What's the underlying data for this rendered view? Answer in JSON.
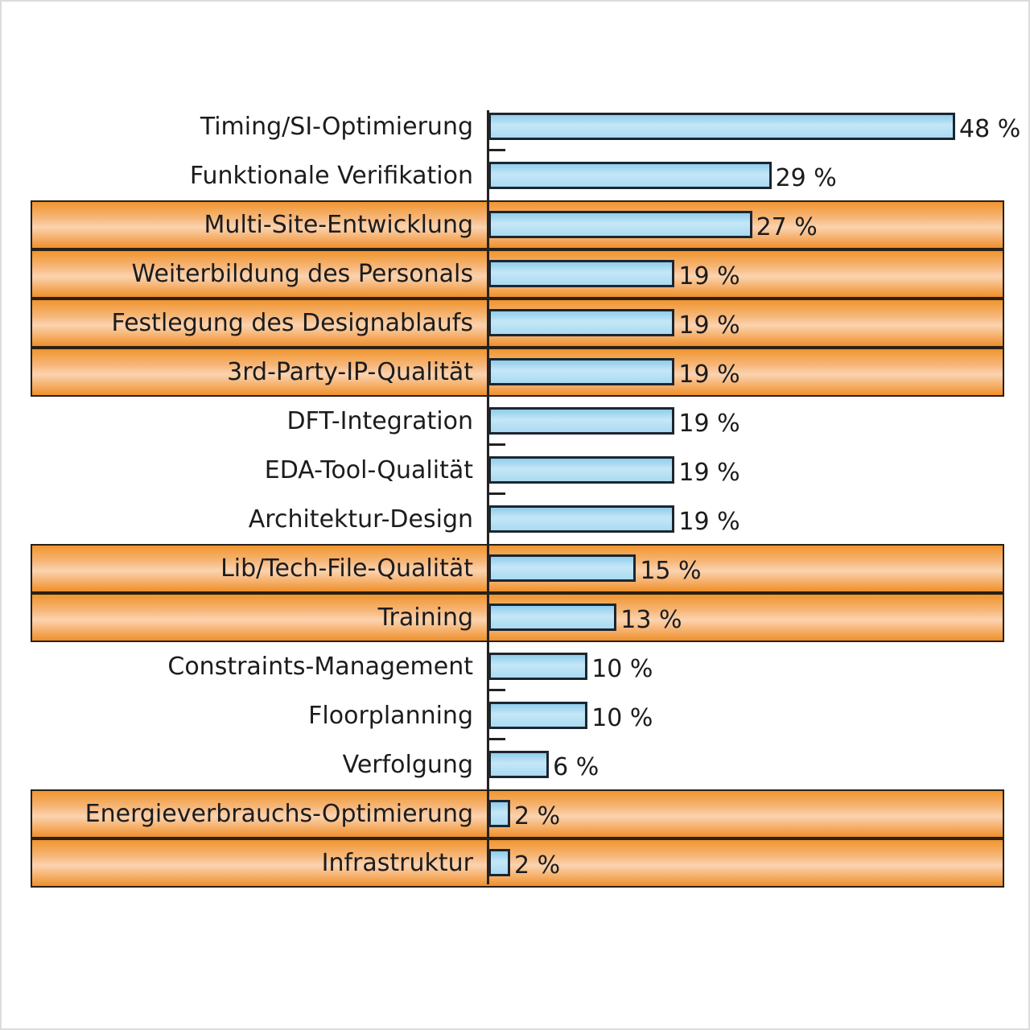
{
  "chart_data": {
    "type": "bar",
    "orientation": "horizontal",
    "title": "",
    "xlabel": "",
    "ylabel": "",
    "xlim": [
      0,
      50
    ],
    "unit": "%",
    "categories": [
      "Timing/SI-Optimierung",
      "Funktionale Verifikation",
      "Multi-Site-Entwicklung",
      "Weiterbildung des Personals",
      "Festlegung des Designablaufs",
      "3rd-Party-IP-Qualität",
      "DFT-Integration",
      "EDA-Tool-Qualität",
      "Architektur-Design",
      "Lib/Tech-File-Qualität",
      "Training",
      "Constraints-Management",
      "Floorplanning",
      "Verfolgung",
      "Energieverbrauchs-Optimierung",
      "Infrastruktur"
    ],
    "values": [
      48,
      29,
      27,
      19,
      19,
      19,
      19,
      19,
      19,
      15,
      13,
      10,
      10,
      6,
      2,
      2
    ],
    "value_labels": [
      "48 %",
      "29 %",
      "27 %",
      "19 %",
      "19 %",
      "19 %",
      "19 %",
      "19 %",
      "19 %",
      "15 %",
      "13 %",
      "10 %",
      "10 %",
      "6 %",
      "2 %",
      "2 %"
    ],
    "highlighted": [
      false,
      false,
      true,
      true,
      true,
      true,
      false,
      false,
      false,
      true,
      true,
      false,
      false,
      false,
      true,
      true
    ],
    "colors": {
      "bar": "#b3e0f5",
      "highlight": "#f39a3c",
      "border": "#1b2630"
    }
  }
}
